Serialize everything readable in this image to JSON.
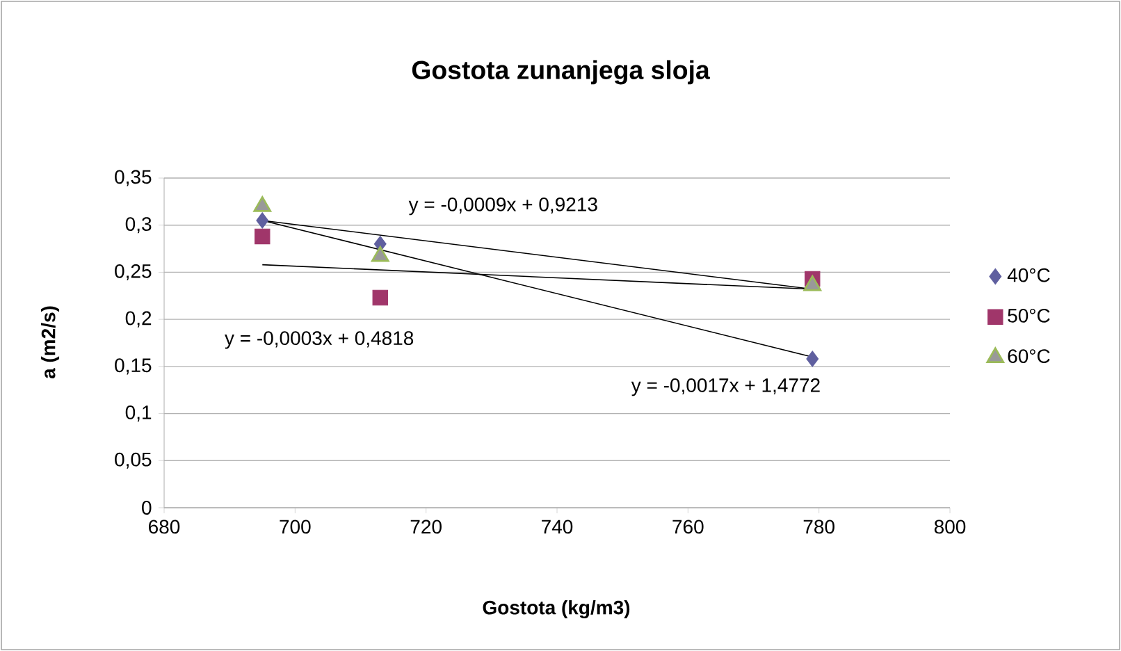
{
  "chart_data": {
    "type": "scatter",
    "title": "Gostota zunanjega sloja",
    "xlabel": "Gostota (kg/m3)",
    "ylabel": "a (m2/s)",
    "xlim": [
      680,
      800
    ],
    "xticks": [
      680,
      700,
      720,
      740,
      760,
      780,
      800
    ],
    "ylim": [
      0,
      0.35
    ],
    "yticks": [
      {
        "value": 0,
        "label": "0"
      },
      {
        "value": 0.05,
        "label": "0,05"
      },
      {
        "value": 0.1,
        "label": "0,1"
      },
      {
        "value": 0.15,
        "label": "0,15"
      },
      {
        "value": 0.2,
        "label": "0,2"
      },
      {
        "value": 0.25,
        "label": "0,25"
      },
      {
        "value": 0.3,
        "label": "0,3"
      },
      {
        "value": 0.35,
        "label": "0,35"
      }
    ],
    "grid": "y",
    "legend": "right",
    "series": [
      {
        "name": "40°C",
        "color": "#5f5f9f",
        "marker": "diamond",
        "x": [
          695,
          713,
          779
        ],
        "values": [
          0.305,
          0.28,
          0.158
        ]
      },
      {
        "name": "50°C",
        "color": "#a0366a",
        "marker": "square",
        "x": [
          695,
          713,
          779
        ],
        "values": [
          0.288,
          0.223,
          0.243
        ]
      },
      {
        "name": "60°C",
        "color": "#9bbb59",
        "marker": "triangle",
        "x": [
          695,
          713,
          779
        ],
        "values": [
          0.32,
          0.267,
          0.236
        ]
      },
      {
        "type": "line",
        "color": "#000000",
        "marker": "none",
        "x": [
          695,
          779
        ],
        "values": [
          0.305,
          0.232
        ]
      },
      {
        "type": "line",
        "color": "#000000",
        "marker": "none",
        "x": [
          695,
          779
        ],
        "values": [
          0.258,
          0.232
        ]
      },
      {
        "type": "line",
        "color": "#000000",
        "marker": "none",
        "x": [
          695,
          779
        ],
        "values": [
          0.305,
          0.16
        ]
      }
    ],
    "annotations": [
      "y = -0,0009x + 0,9213",
      "y = -0,0003x + 0,4818",
      "y = -0,0017x + 1,4772"
    ]
  }
}
